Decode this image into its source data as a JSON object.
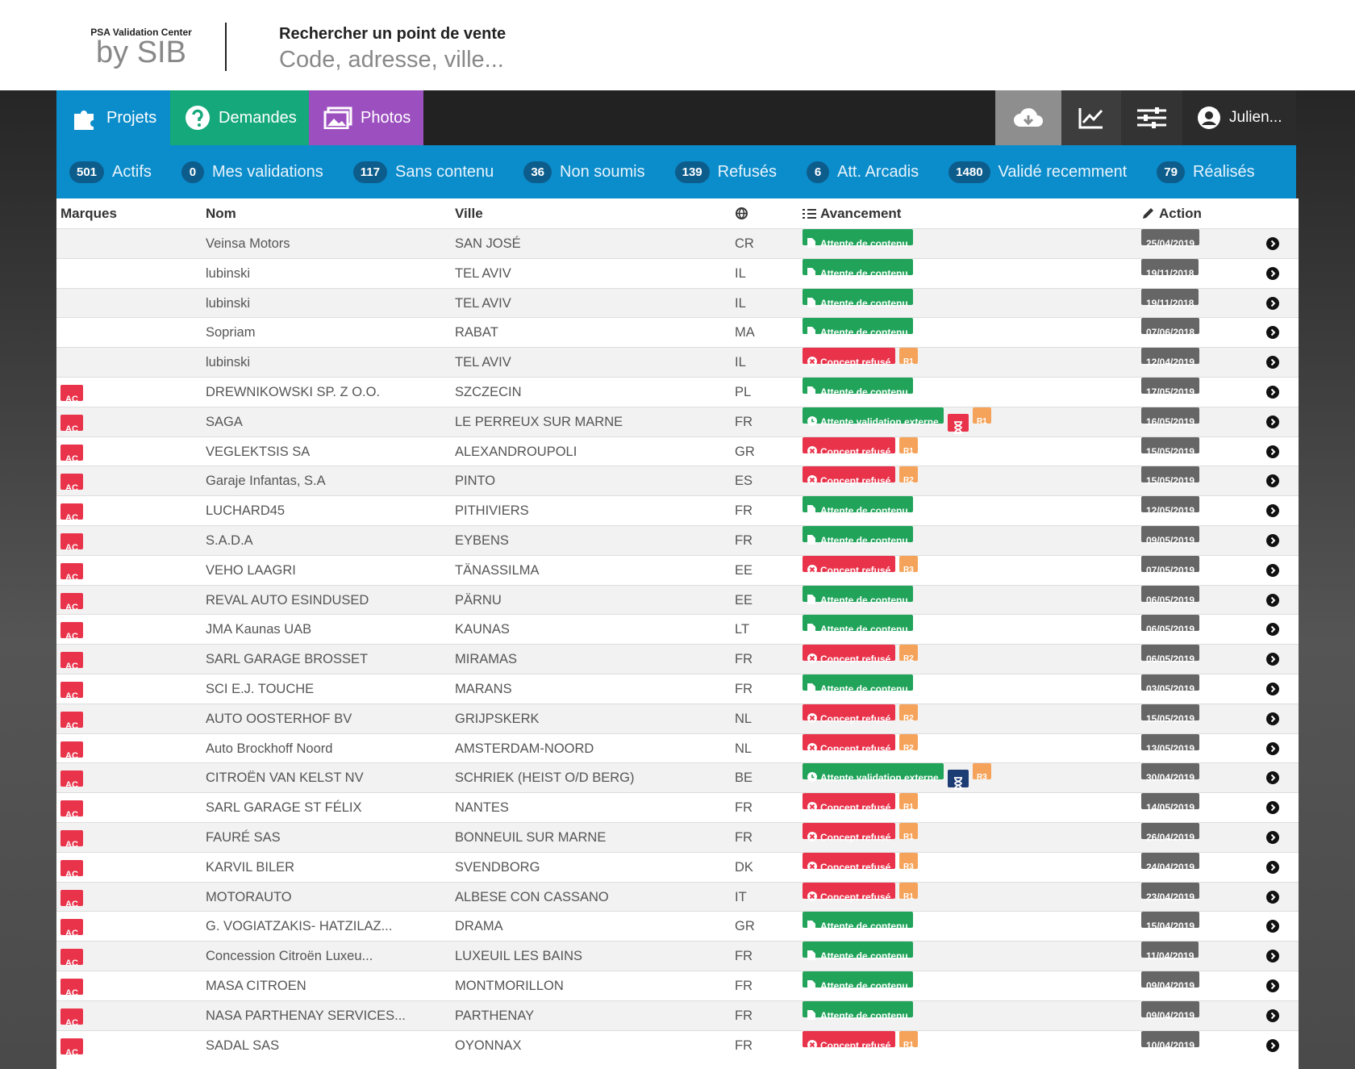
{
  "header": {
    "brand_small": "PSA Validation Center",
    "brand_large": "by SIB",
    "search_label": "Rechercher un point de vente",
    "search_placeholder": "Code, adresse, ville..."
  },
  "nav": {
    "tabs": [
      "Projets",
      "Demandes",
      "Photos"
    ],
    "user": "Julien..."
  },
  "counters": [
    {
      "count": "501",
      "label": "Actifs"
    },
    {
      "count": "0",
      "label": "Mes validations"
    },
    {
      "count": "117",
      "label": "Sans contenu"
    },
    {
      "count": "36",
      "label": "Non soumis"
    },
    {
      "count": "139",
      "label": "Refusés"
    },
    {
      "count": "6",
      "label": "Att. Arcadis"
    },
    {
      "count": "1480",
      "label": "Validé recemment"
    },
    {
      "count": "79",
      "label": "Réalisés"
    }
  ],
  "table": {
    "headers": [
      "Marques",
      "Nom",
      "Ville",
      "Avancement",
      "Action"
    ],
    "rows": [
      {
        "name": "Veinsa Motors",
        "city": "SAN JOSÉ",
        "country": "CR",
        "status": "Attente de contenu",
        "status_color": "#21a35a",
        "date": "25/04/2019"
      },
      {
        "name": "lubinski",
        "city": "TEL AVIV",
        "country": "IL",
        "status": "Attente de contenu",
        "status_color": "#21a35a",
        "date": "19/11/2018"
      },
      {
        "name": "lubinski",
        "city": "TEL AVIV",
        "country": "IL",
        "status": "Attente de contenu",
        "status_color": "#21a35a",
        "date": "19/11/2018"
      },
      {
        "name": "Sopriam",
        "city": "RABAT",
        "country": "MA",
        "status": "Attente de contenu",
        "status_color": "#21a35a",
        "date": "07/06/2018"
      },
      {
        "name": "lubinski",
        "city": "TEL AVIV",
        "country": "IL",
        "status": "Concept refusé",
        "status_color": "#e8334a",
        "round": "R1",
        "date": "12/04/2019"
      },
      {
        "brand": "AC",
        "name": "DREWNIKOWSKI SP. Z O.O.",
        "city": "SZCZECIN",
        "country": "PL",
        "status": "Attente de contenu",
        "status_color": "#21a35a",
        "date": "17/05/2019"
      },
      {
        "brand": "AC",
        "name": "SAGA",
        "city": "LE PERREUX SUR MARNE",
        "country": "FR",
        "status": "Attente validation externe",
        "status_color": "#21a35a",
        "hourglass": "#e8334a",
        "round": "R1",
        "date": "16/05/2019"
      },
      {
        "brand": "AC",
        "name": "VEGLEKTSIS SA",
        "city": "ALEXANDROUPOLI",
        "country": "GR",
        "status": "Concept refusé",
        "status_color": "#e8334a",
        "round": "R1",
        "date": "15/05/2019"
      },
      {
        "brand": "AC",
        "name": "Garaje Infantas, S.A",
        "city": "PINTO",
        "country": "ES",
        "status": "Concept refusé",
        "status_color": "#e8334a",
        "round": "R2",
        "date": "15/05/2019"
      },
      {
        "brand": "AC",
        "name": "LUCHARD45",
        "city": "PITHIVIERS",
        "country": "FR",
        "status": "Attente de contenu",
        "status_color": "#21a35a",
        "date": "12/05/2019"
      },
      {
        "brand": "AC",
        "name": "S.A.D.A",
        "city": "EYBENS",
        "country": "FR",
        "status": "Attente de contenu",
        "status_color": "#21a35a",
        "date": "09/05/2019"
      },
      {
        "brand": "AC",
        "name": "VEHO LAAGRI",
        "city": "TÄNASSILMA",
        "country": "EE",
        "status": "Concept refusé",
        "status_color": "#e8334a",
        "round": "R3",
        "date": "07/05/2019"
      },
      {
        "brand": "AC",
        "name": "REVAL AUTO ESINDUSED",
        "city": "PÄRNU",
        "country": "EE",
        "status": "Attente de contenu",
        "status_color": "#21a35a",
        "date": "06/05/2019"
      },
      {
        "brand": "AC",
        "name": "JMA Kaunas UAB",
        "city": "KAUNAS",
        "country": "LT",
        "status": "Attente de contenu",
        "status_color": "#21a35a",
        "date": "06/05/2019"
      },
      {
        "brand": "AC",
        "name": "SARL GARAGE BROSSET",
        "city": "MIRAMAS",
        "country": "FR",
        "status": "Concept refusé",
        "status_color": "#e8334a",
        "round": "R2",
        "date": "06/05/2019"
      },
      {
        "brand": "AC",
        "name": "SCI E.J. TOUCHE",
        "city": "MARANS",
        "country": "FR",
        "status": "Attente de contenu",
        "status_color": "#21a35a",
        "date": "03/05/2019"
      },
      {
        "brand": "AC",
        "name": "AUTO OOSTERHOF BV",
        "city": "GRIJPSKERK",
        "country": "NL",
        "status": "Concept refusé",
        "status_color": "#e8334a",
        "round": "R2",
        "date": "15/05/2019"
      },
      {
        "brand": "AC",
        "name": "Auto Brockhoff Noord",
        "city": "AMSTERDAM-NOORD",
        "country": "NL",
        "status": "Concept refusé",
        "status_color": "#e8334a",
        "round": "R2",
        "date": "13/05/2019"
      },
      {
        "brand": "AC",
        "name": "CITROËN VAN KELST NV",
        "city": "SCHRIEK (HEIST O/D BERG)",
        "country": "BE",
        "status": "Attente validation externe",
        "status_color": "#21a35a",
        "hourglass": "#1c3c74",
        "round": "R3",
        "date": "30/04/2019"
      },
      {
        "brand": "AC",
        "name": "SARL GARAGE ST FÉLIX",
        "city": "NANTES",
        "country": "FR",
        "status": "Concept refusé",
        "status_color": "#e8334a",
        "round": "R1",
        "date": "14/05/2019"
      },
      {
        "brand": "AC",
        "name": "FAURÉ SAS",
        "city": "BONNEUIL SUR MARNE",
        "country": "FR",
        "status": "Concept refusé",
        "status_color": "#e8334a",
        "round": "R1",
        "date": "26/04/2019"
      },
      {
        "brand": "AC",
        "name": "KARVIL BILER",
        "city": "SVENDBORG",
        "country": "DK",
        "status": "Concept refusé",
        "status_color": "#e8334a",
        "round": "R3",
        "date": "24/04/2019"
      },
      {
        "brand": "AC",
        "name": "MOTORAUTO",
        "city": "ALBESE CON CASSANO",
        "country": "IT",
        "status": "Concept refusé",
        "status_color": "#e8334a",
        "round": "R1",
        "date": "23/04/2019"
      },
      {
        "brand": "AC",
        "name": "G. VOGIATZAKIS- HATZILAZ...",
        "city": "DRAMA",
        "country": "GR",
        "status": "Attente de contenu",
        "status_color": "#21a35a",
        "date": "15/04/2019"
      },
      {
        "brand": "AC",
        "name": "Concession Citroën Luxeu...",
        "city": "LUXEUIL LES BAINS",
        "country": "FR",
        "status": "Attente de contenu",
        "status_color": "#21a35a",
        "date": "11/04/2019"
      },
      {
        "brand": "AC",
        "name": "MASA CITROEN",
        "city": "MONTMORILLON",
        "country": "FR",
        "status": "Attente de contenu",
        "status_color": "#21a35a",
        "date": "09/04/2019"
      },
      {
        "brand": "AC",
        "name": "NASA PARTHENAY SERVICES...",
        "city": "PARTHENAY",
        "country": "FR",
        "status": "Attente de contenu",
        "status_color": "#21a35a",
        "date": "09/04/2019"
      },
      {
        "brand": "AC",
        "name": "SADAL SAS",
        "city": "OYONNAX",
        "country": "FR",
        "status": "Concept refusé",
        "status_color": "#e8334a",
        "round": "R1",
        "date": "10/04/2019"
      }
    ]
  }
}
